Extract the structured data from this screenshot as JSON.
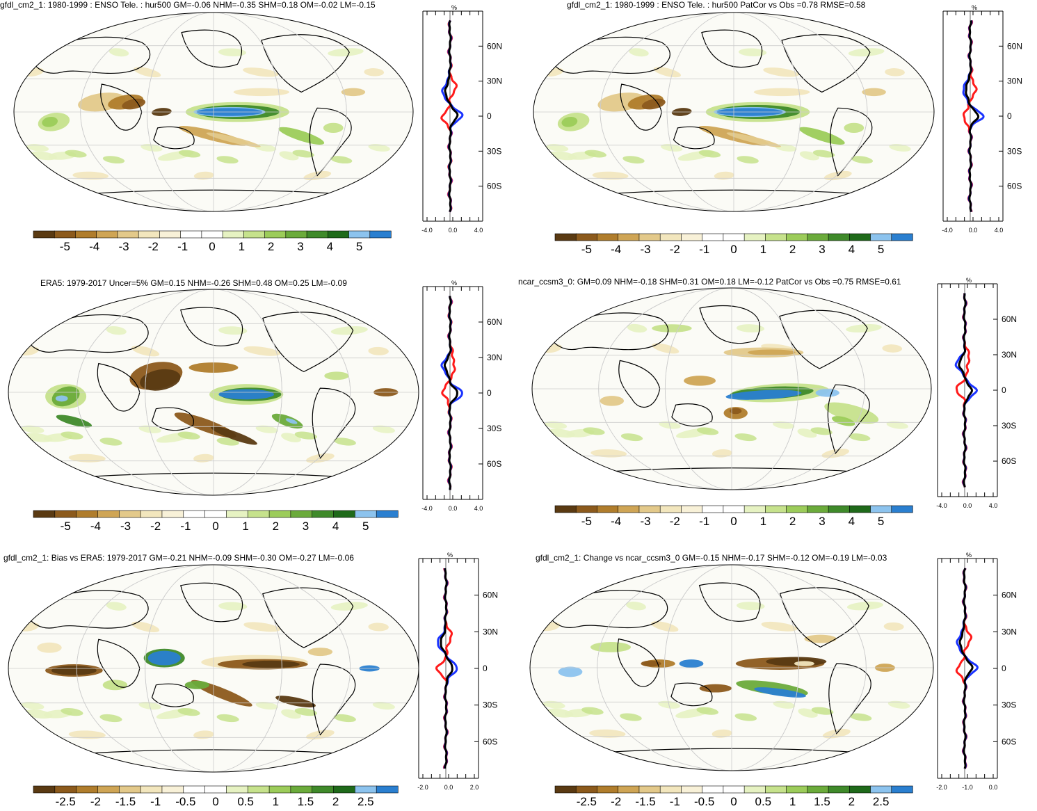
{
  "colors": {
    "brown_dark": "#5a3a12",
    "brown": "#8c5a1c",
    "brown_mid": "#b07d2c",
    "tan": "#cfa555",
    "tan_light": "#e3c98a",
    "cream": "#f2e6bd",
    "cream_light": "#f8f1d8",
    "white": "#ffffff",
    "green_pale": "#e6f2c2",
    "green_light": "#c6e28c",
    "green": "#9ccc5a",
    "green_mid": "#6bab3b",
    "green_dark": "#3f8a2a",
    "green_darker": "#1f6a1a",
    "blue_light": "#8cc3ee",
    "blue": "#2a7fd0",
    "zonal_model": "#ff1a1a",
    "zonal_obs": "#1a33ff",
    "zonal_total": "#000000"
  },
  "panels": [
    {
      "id": "model-clim",
      "title": "gfdl_cm2_1: 1980-1999 : ENSO Tele. : hur500 GM=-0.06 NHM=-0.35 SHM=0.18 OM=-0.02 LM=-0.15",
      "zonal": {
        "unit": "%",
        "lat_labels": [
          "60N",
          "30N",
          "0",
          "30S",
          "60S"
        ],
        "x_ticks": [
          "-4.0",
          "0.0",
          "4.0"
        ]
      },
      "colorbar": {
        "ticks": [
          "-5",
          "-4",
          "-3",
          "-2",
          "-1",
          "0",
          "1",
          "2",
          "3",
          "4",
          "5"
        ]
      }
    },
    {
      "id": "model-patcor",
      "title": "gfdl_cm2_1: 1980-1999 : ENSO Tele. : hur500 PatCor vs Obs =0.78 RMSE=0.58",
      "zonal": {
        "unit": "%",
        "lat_labels": [
          "60N",
          "30N",
          "0",
          "30S",
          "60S"
        ],
        "x_ticks": [
          "-4.0",
          "0.0",
          "4.0"
        ]
      },
      "colorbar": {
        "ticks": [
          "-5",
          "-4",
          "-3",
          "-2",
          "-1",
          "0",
          "1",
          "2",
          "3",
          "4",
          "5"
        ]
      }
    },
    {
      "id": "era5-obs",
      "title": "ERA5: 1979-2017 Uncer=5% GM=0.15 NHM=-0.26 SHM=0.48 OM=0.25 LM=-0.09",
      "zonal": {
        "unit": "%",
        "lat_labels": [
          "60N",
          "30N",
          "0",
          "30S",
          "60S"
        ],
        "x_ticks": [
          "-4.0",
          "0.0",
          "4.0"
        ]
      },
      "colorbar": {
        "ticks": [
          "-5",
          "-4",
          "-3",
          "-2",
          "-1",
          "0",
          "1",
          "2",
          "3",
          "4",
          "5"
        ]
      }
    },
    {
      "id": "ncar-ref",
      "title": "ncar_ccsm3_0: GM=0.09 NHM=-0.18 SHM=0.31 OM=0.18 LM=-0.12 PatCor vs Obs =0.75 RMSE=0.61",
      "zonal": {
        "unit": "%",
        "lat_labels": [
          "60N",
          "30N",
          "0",
          "30S",
          "60S"
        ],
        "x_ticks": [
          "-4.0",
          "0.0",
          "4.0"
        ]
      },
      "colorbar": {
        "ticks": [
          "-5",
          "-4",
          "-3",
          "-2",
          "-1",
          "0",
          "1",
          "2",
          "3",
          "4",
          "5"
        ]
      }
    },
    {
      "id": "bias-era5",
      "title": "gfdl_cm2_1: Bias vs ERA5: 1979-2017 GM=-0.21 NHM=-0.09 SHM=-0.30 OM=-0.27 LM=-0.06",
      "zonal": {
        "unit": "%",
        "lat_labels": [
          "60N",
          "30N",
          "0",
          "30S",
          "60S"
        ],
        "x_ticks": [
          "-2.0",
          "0.0",
          "2.0"
        ]
      },
      "colorbar": {
        "ticks": [
          "-2.5",
          "-2",
          "-1.5",
          "-1",
          "-0.5",
          "0",
          "0.5",
          "1",
          "1.5",
          "2",
          "2.5"
        ]
      }
    },
    {
      "id": "change-ncar",
      "title": "gfdl_cm2_1: Change vs ncar_ccsm3_0 GM=-0.15 NHM=-0.17 SHM=-0.12 OM=-0.19 LM=-0.03",
      "zonal": {
        "unit": "%",
        "lat_labels": [
          "60N",
          "30N",
          "0",
          "30S",
          "60S"
        ],
        "x_ticks": [
          "-2.0",
          "-1.0",
          "0.0"
        ]
      },
      "colorbar": {
        "ticks": [
          "-2.5",
          "-2",
          "-1.5",
          "-1",
          "-0.5",
          "0",
          "0.5",
          "1",
          "1.5",
          "2",
          "2.5"
        ]
      }
    }
  ]
}
